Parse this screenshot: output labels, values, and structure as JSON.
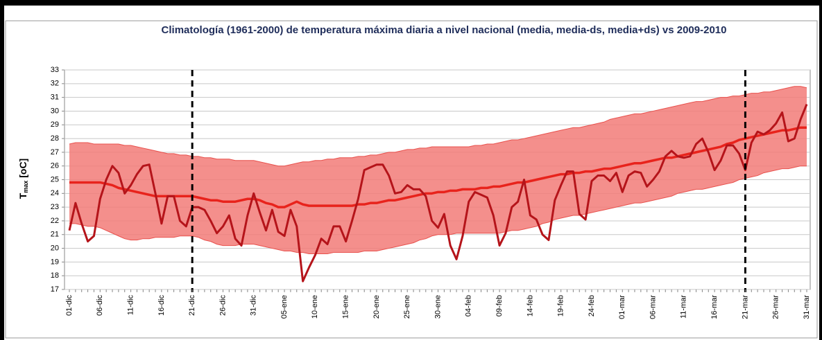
{
  "chart_data": {
    "type": "line",
    "title": "Climatología (1961-2000) de temperatura máxima diaria a nivel nacional (media, media-ds, media+ds) vs 2009-2010",
    "ylabel": [
      "T",
      "max",
      " [oC]"
    ],
    "categories": [
      "01-dic",
      null,
      null,
      null,
      null,
      "06-dic",
      null,
      null,
      null,
      null,
      "11-dic",
      null,
      null,
      null,
      null,
      "16-dic",
      null,
      null,
      null,
      null,
      "21-dic",
      null,
      null,
      null,
      null,
      "26-dic",
      null,
      null,
      null,
      null,
      "31-dic",
      null,
      null,
      null,
      null,
      "05-ene",
      null,
      null,
      null,
      null,
      "10-ene",
      null,
      null,
      null,
      null,
      "15-ene",
      null,
      null,
      null,
      null,
      "20-ene",
      null,
      null,
      null,
      null,
      "25-ene",
      null,
      null,
      null,
      null,
      "30-ene",
      null,
      null,
      null,
      null,
      "04-feb",
      null,
      null,
      null,
      null,
      "09-feb",
      null,
      null,
      null,
      null,
      "14-feb",
      null,
      null,
      null,
      null,
      "19-feb",
      null,
      null,
      null,
      null,
      "24-feb",
      null,
      null,
      null,
      null,
      "01-mar",
      null,
      null,
      null,
      null,
      "06-mar",
      null,
      null,
      null,
      null,
      "11-mar",
      null,
      null,
      null,
      null,
      "16-mar",
      null,
      null,
      null,
      null,
      "21-mar",
      null,
      null,
      null,
      null,
      "26-mar",
      null,
      null,
      null,
      null,
      "31-mar"
    ],
    "vlines": [
      "21-dic",
      "21-mar"
    ],
    "band": {
      "color": "#f27b78",
      "edge": "#e8504c",
      "upper": [
        27.6,
        27.7,
        27.7,
        27.7,
        27.6,
        27.6,
        27.6,
        27.6,
        27.6,
        27.5,
        27.5,
        27.4,
        27.3,
        27.2,
        27.1,
        27.0,
        26.9,
        26.9,
        26.8,
        26.8,
        26.7,
        26.7,
        26.6,
        26.6,
        26.5,
        26.5,
        26.5,
        26.4,
        26.4,
        26.4,
        26.4,
        26.3,
        26.2,
        26.1,
        26.0,
        26.0,
        26.1,
        26.2,
        26.3,
        26.3,
        26.4,
        26.4,
        26.5,
        26.5,
        26.6,
        26.6,
        26.6,
        26.7,
        26.7,
        26.8,
        26.8,
        26.9,
        27.0,
        27.0,
        27.1,
        27.2,
        27.2,
        27.3,
        27.3,
        27.4,
        27.4,
        27.4,
        27.4,
        27.4,
        27.4,
        27.4,
        27.5,
        27.5,
        27.6,
        27.6,
        27.7,
        27.8,
        27.9,
        27.9,
        28.0,
        28.1,
        28.2,
        28.3,
        28.4,
        28.5,
        28.6,
        28.7,
        28.8,
        28.8,
        28.9,
        29.0,
        29.1,
        29.2,
        29.4,
        29.5,
        29.6,
        29.7,
        29.8,
        29.8,
        29.9,
        30.0,
        30.1,
        30.2,
        30.3,
        30.4,
        30.5,
        30.6,
        30.7,
        30.7,
        30.8,
        30.9,
        31.0,
        31.0,
        31.1,
        31.1,
        31.2,
        31.3,
        31.3,
        31.4,
        31.4,
        31.5,
        31.6,
        31.7,
        31.8,
        31.8,
        31.7
      ],
      "lower": [
        21.8,
        21.8,
        21.7,
        21.6,
        21.6,
        21.5,
        21.3,
        21.1,
        20.9,
        20.7,
        20.6,
        20.6,
        20.7,
        20.7,
        20.8,
        20.8,
        20.8,
        20.8,
        20.9,
        20.9,
        20.9,
        20.8,
        20.6,
        20.5,
        20.3,
        20.2,
        20.2,
        20.2,
        20.3,
        20.3,
        20.3,
        20.2,
        20.1,
        20.0,
        19.9,
        19.8,
        19.8,
        19.7,
        19.7,
        19.6,
        19.6,
        19.6,
        19.6,
        19.7,
        19.7,
        19.7,
        19.7,
        19.7,
        19.8,
        19.8,
        19.8,
        19.9,
        20.0,
        20.1,
        20.2,
        20.3,
        20.4,
        20.6,
        20.7,
        20.9,
        21.0,
        21.0,
        21.0,
        21.1,
        21.1,
        21.1,
        21.1,
        21.1,
        21.1,
        21.1,
        21.1,
        21.2,
        21.3,
        21.3,
        21.4,
        21.5,
        21.6,
        21.8,
        21.9,
        22.1,
        22.2,
        22.3,
        22.4,
        22.4,
        22.5,
        22.6,
        22.7,
        22.8,
        22.9,
        23.0,
        23.1,
        23.2,
        23.3,
        23.3,
        23.4,
        23.5,
        23.6,
        23.7,
        23.8,
        24.0,
        24.1,
        24.2,
        24.3,
        24.3,
        24.4,
        24.5,
        24.6,
        24.7,
        24.8,
        25.0,
        25.1,
        25.2,
        25.3,
        25.5,
        25.6,
        25.7,
        25.8,
        25.8,
        25.9,
        26.0,
        26.0
      ]
    },
    "series": [
      {
        "color": "#e8231c",
        "values": [
          24.8,
          24.8,
          24.8,
          24.8,
          24.8,
          24.8,
          24.7,
          24.6,
          24.4,
          24.3,
          24.2,
          24.1,
          24.0,
          23.9,
          23.8,
          23.8,
          23.8,
          23.8,
          23.8,
          23.8,
          23.8,
          23.7,
          23.6,
          23.5,
          23.5,
          23.4,
          23.4,
          23.4,
          23.5,
          23.6,
          23.6,
          23.5,
          23.3,
          23.2,
          23.0,
          23.0,
          23.2,
          23.4,
          23.2,
          23.1,
          23.1,
          23.1,
          23.1,
          23.1,
          23.1,
          23.1,
          23.1,
          23.2,
          23.2,
          23.3,
          23.3,
          23.4,
          23.5,
          23.5,
          23.6,
          23.7,
          23.8,
          23.9,
          24.0,
          24.0,
          24.1,
          24.1,
          24.2,
          24.2,
          24.3,
          24.3,
          24.3,
          24.4,
          24.4,
          24.5,
          24.5,
          24.6,
          24.7,
          24.8,
          24.8,
          24.9,
          25.0,
          25.1,
          25.2,
          25.3,
          25.4,
          25.4,
          25.5,
          25.5,
          25.6,
          25.6,
          25.7,
          25.8,
          25.8,
          25.9,
          26.0,
          26.1,
          26.2,
          26.2,
          26.3,
          26.4,
          26.5,
          26.6,
          26.6,
          26.7,
          26.8,
          26.9,
          27.0,
          27.1,
          27.2,
          27.3,
          27.4,
          27.6,
          27.7,
          27.9,
          28.0,
          28.1,
          28.2,
          28.3,
          28.4,
          28.5,
          28.6,
          28.6,
          28.7,
          28.8,
          28.8
        ]
      },
      {
        "color": "#b5141a",
        "values": [
          21.3,
          23.3,
          21.8,
          20.5,
          20.9,
          23.6,
          25.0,
          26.0,
          25.5,
          24.0,
          24.6,
          25.4,
          26.0,
          26.1,
          24.0,
          21.8,
          23.8,
          23.8,
          22.0,
          21.6,
          23.0,
          23.0,
          22.8,
          22.0,
          21.1,
          21.6,
          22.4,
          20.7,
          20.2,
          22.4,
          24.0,
          22.6,
          21.3,
          22.8,
          21.2,
          20.9,
          22.8,
          21.6,
          17.6,
          18.6,
          19.5,
          20.7,
          20.3,
          21.6,
          21.6,
          20.5,
          22.0,
          23.6,
          25.7,
          25.9,
          26.1,
          26.1,
          25.3,
          24.0,
          24.1,
          24.6,
          24.3,
          24.3,
          23.8,
          22.0,
          21.5,
          22.5,
          20.2,
          19.2,
          20.9,
          23.4,
          24.1,
          23.9,
          23.7,
          22.4,
          20.2,
          21.1,
          23.0,
          23.4,
          25.0,
          22.4,
          22.1,
          21.0,
          20.6,
          23.5,
          24.6,
          25.6,
          25.6,
          22.5,
          22.1,
          24.9,
          25.3,
          25.3,
          24.9,
          25.5,
          24.1,
          25.3,
          25.6,
          25.5,
          24.5,
          25.0,
          25.6,
          26.7,
          27.1,
          26.7,
          26.6,
          26.7,
          27.6,
          28.0,
          27.0,
          25.7,
          26.4,
          27.5,
          27.5,
          26.9,
          25.7,
          27.7,
          28.5,
          28.3,
          28.6,
          29.1,
          29.9,
          27.8,
          28.0,
          29.4,
          30.5
        ]
      }
    ],
    "ylim": [
      17,
      33
    ],
    "yticks": [
      17,
      18,
      19,
      20,
      21,
      22,
      23,
      24,
      25,
      26,
      27,
      28,
      29,
      30,
      31,
      32,
      33
    ],
    "grid": true
  }
}
